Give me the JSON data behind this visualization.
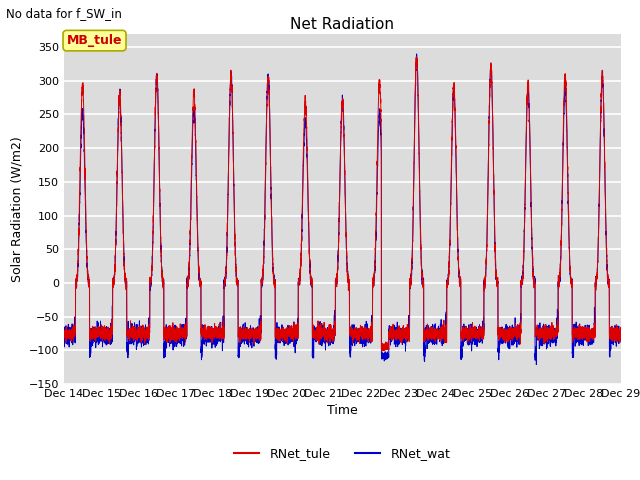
{
  "title": "Net Radiation",
  "suptitle": "No data for f_SW_in",
  "ylabel": "Solar Radiation (W/m2)",
  "xlabel": "Time",
  "ylim": [
    -150,
    370
  ],
  "yticks": [
    -150,
    -100,
    -50,
    0,
    50,
    100,
    150,
    200,
    250,
    300,
    350
  ],
  "xtick_labels": [
    "Dec 14",
    "Dec 15",
    "Dec 16",
    "Dec 17",
    "Dec 18",
    "Dec 19",
    "Dec 20",
    "Dec 21",
    "Dec 22",
    "Dec 23",
    "Dec 24",
    "Dec 25",
    "Dec 26",
    "Dec 27",
    "Dec 28",
    "Dec 29"
  ],
  "color_tule": "#dd0000",
  "color_wat": "#0000cc",
  "legend_label_tule": "RNet_tule",
  "legend_label_wat": "RNet_wat",
  "box_label": "MB_tule",
  "box_color": "#ffff99",
  "box_text_color": "#cc0000",
  "n_days": 15,
  "background_color": "#dcdcdc",
  "grid_color": "#ffffff",
  "peak_amps_tule": [
    293,
    280,
    307,
    283,
    308,
    305,
    268,
    270,
    298,
    335,
    295,
    320,
    295,
    308,
    307
  ],
  "peak_amps_wat": [
    257,
    280,
    307,
    260,
    308,
    308,
    243,
    270,
    250,
    335,
    285,
    320,
    287,
    288,
    307
  ],
  "night_tule": -75,
  "night_wat": -78
}
